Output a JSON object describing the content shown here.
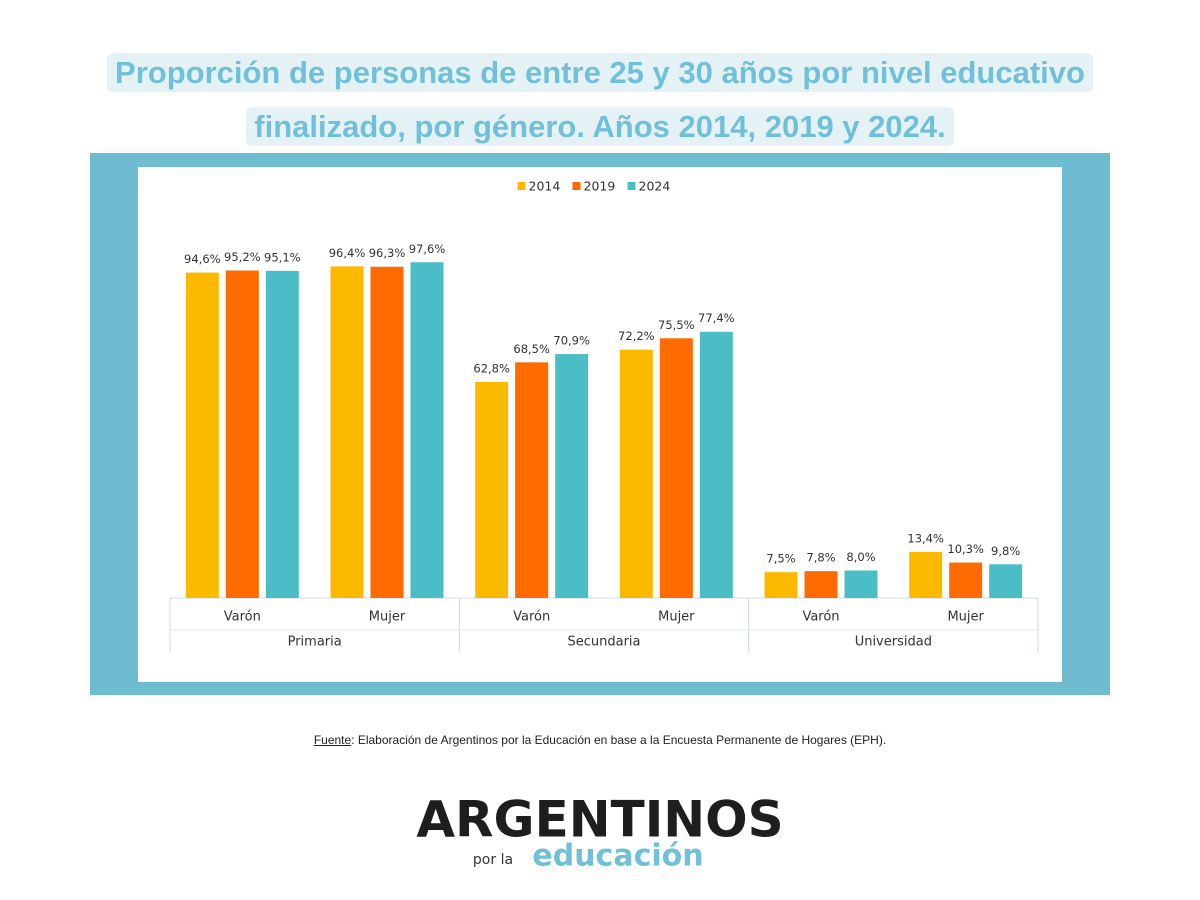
{
  "title": "Proporción de personas de entre 25 y 30 años por nivel educativo finalizado, por género. Años 2014, 2019 y 2024.",
  "chart_data": {
    "type": "bar",
    "categories": [
      "Varón",
      "Mujer",
      "Varón",
      "Mujer",
      "Varón",
      "Mujer"
    ],
    "groups": [
      "Primaria",
      "Secundaria",
      "Universidad"
    ],
    "series": [
      {
        "name": "2014",
        "color": "#fbba00",
        "values": [
          94.6,
          96.4,
          62.8,
          72.2,
          7.5,
          13.4
        ],
        "value_labels": [
          "94,6%",
          "96,4%",
          "62,8%",
          "72,2%",
          "7,5%",
          "13,4%"
        ]
      },
      {
        "name": "2019",
        "color": "#ff6b00",
        "values": [
          95.2,
          96.3,
          68.5,
          75.5,
          7.8,
          10.3
        ],
        "value_labels": [
          "95,2%",
          "96,3%",
          "68,5%",
          "75,5%",
          "7,8%",
          "10,3%"
        ]
      },
      {
        "name": "2024",
        "color": "#4bbdc6",
        "values": [
          95.1,
          97.6,
          70.9,
          77.4,
          8.0,
          9.8
        ],
        "value_labels": [
          "95,1%",
          "97,6%",
          "70,9%",
          "77,4%",
          "8,0%",
          "9,8%"
        ]
      }
    ],
    "ylim": [
      0,
      100
    ],
    "legend": "top"
  },
  "source_label": "Fuente",
  "source_text": ": Elaboración de Argentinos por la Educación en base a la Encuesta Permanente de Hogares (EPH).",
  "logo": {
    "main": "ARGENTINOS",
    "small": "por la",
    "accent": "educación"
  }
}
